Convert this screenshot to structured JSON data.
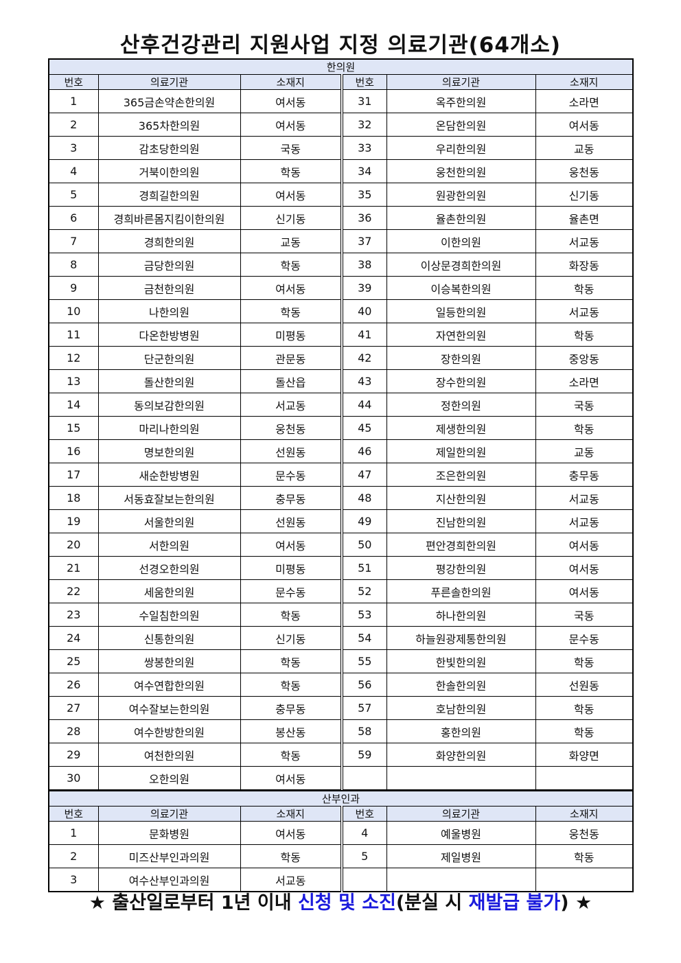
{
  "title": "산후건강관리 지원사업 지정 의료기관(64개소)",
  "headers": {
    "no": "번호",
    "name": "의료기관",
    "loc": "소재지"
  },
  "sections": [
    {
      "title": "한의원",
      "left": [
        [
          "1",
          "365금손약손한의원",
          "여서동"
        ],
        [
          "2",
          "365차한의원",
          "여서동"
        ],
        [
          "3",
          "감초당한의원",
          "국동"
        ],
        [
          "4",
          "거북이한의원",
          "학동"
        ],
        [
          "5",
          "경희길한의원",
          "여서동"
        ],
        [
          "6",
          "경희바른몸지킴이한의원",
          "신기동"
        ],
        [
          "7",
          "경희한의원",
          "교동"
        ],
        [
          "8",
          "금당한의원",
          "학동"
        ],
        [
          "9",
          "금천한의원",
          "여서동"
        ],
        [
          "10",
          "나한의원",
          "학동"
        ],
        [
          "11",
          "다온한방병원",
          "미평동"
        ],
        [
          "12",
          "단군한의원",
          "관문동"
        ],
        [
          "13",
          "돌산한의원",
          "돌산읍"
        ],
        [
          "14",
          "동의보감한의원",
          "서교동"
        ],
        [
          "15",
          "마리나한의원",
          "웅천동"
        ],
        [
          "16",
          "명보한의원",
          "선원동"
        ],
        [
          "17",
          "새순한방병원",
          "문수동"
        ],
        [
          "18",
          "서동효잘보는한의원",
          "충무동"
        ],
        [
          "19",
          "서울한의원",
          "선원동"
        ],
        [
          "20",
          "서한의원",
          "여서동"
        ],
        [
          "21",
          "선경오한의원",
          "미평동"
        ],
        [
          "22",
          "세움한의원",
          "문수동"
        ],
        [
          "23",
          "수일침한의원",
          "학동"
        ],
        [
          "24",
          "신통한의원",
          "신기동"
        ],
        [
          "25",
          "쌍봉한의원",
          "학동"
        ],
        [
          "26",
          "여수연합한의원",
          "학동"
        ],
        [
          "27",
          "여수잘보는한의원",
          "충무동"
        ],
        [
          "28",
          "여수한방한의원",
          "봉산동"
        ],
        [
          "29",
          "여천한의원",
          "학동"
        ],
        [
          "30",
          "오한의원",
          "여서동"
        ]
      ],
      "right": [
        [
          "31",
          "옥주한의원",
          "소라면"
        ],
        [
          "32",
          "온담한의원",
          "여서동"
        ],
        [
          "33",
          "우리한의원",
          "교동"
        ],
        [
          "34",
          "웅천한의원",
          "웅천동"
        ],
        [
          "35",
          "원광한의원",
          "신기동"
        ],
        [
          "36",
          "율촌한의원",
          "율촌면"
        ],
        [
          "37",
          "이한의원",
          "서교동"
        ],
        [
          "38",
          "이상문경희한의원",
          "화장동"
        ],
        [
          "39",
          "이승복한의원",
          "학동"
        ],
        [
          "40",
          "일등한의원",
          "서교동"
        ],
        [
          "41",
          "자연한의원",
          "학동"
        ],
        [
          "42",
          "장한의원",
          "중앙동"
        ],
        [
          "43",
          "장수한의원",
          "소라면"
        ],
        [
          "44",
          "정한의원",
          "국동"
        ],
        [
          "45",
          "제생한의원",
          "학동"
        ],
        [
          "46",
          "제일한의원",
          "교동"
        ],
        [
          "47",
          "조은한의원",
          "충무동"
        ],
        [
          "48",
          "지산한의원",
          "서교동"
        ],
        [
          "49",
          "진남한의원",
          "서교동"
        ],
        [
          "50",
          "편안경희한의원",
          "여서동"
        ],
        [
          "51",
          "평강한의원",
          "여서동"
        ],
        [
          "52",
          "푸른솔한의원",
          "여서동"
        ],
        [
          "53",
          "하나한의원",
          "국동"
        ],
        [
          "54",
          "하늘원광제통한의원",
          "문수동"
        ],
        [
          "55",
          "한빛한의원",
          "학동"
        ],
        [
          "56",
          "한솔한의원",
          "선원동"
        ],
        [
          "57",
          "호남한의원",
          "학동"
        ],
        [
          "58",
          "홍한의원",
          "학동"
        ],
        [
          "59",
          "화양한의원",
          "화양면"
        ]
      ]
    },
    {
      "title": "산부인과",
      "left": [
        [
          "1",
          "문화병원",
          "여서동"
        ],
        [
          "2",
          "미즈산부인과의원",
          "학동"
        ],
        [
          "3",
          "여수산부인과의원",
          "서교동"
        ]
      ],
      "right": [
        [
          "4",
          "예울병원",
          "웅천동"
        ],
        [
          "5",
          "제일병원",
          "학동"
        ]
      ]
    }
  ],
  "footer": {
    "p1": "★ 출산일로부터 1년 이내 ",
    "p2": "신청 및 소진",
    "p3": "(분실 시 ",
    "p4": "재발급 불가",
    "p5": ") ★"
  },
  "colors": {
    "header_bg": "#dfe6f6",
    "highlight": "#1a1adc"
  }
}
